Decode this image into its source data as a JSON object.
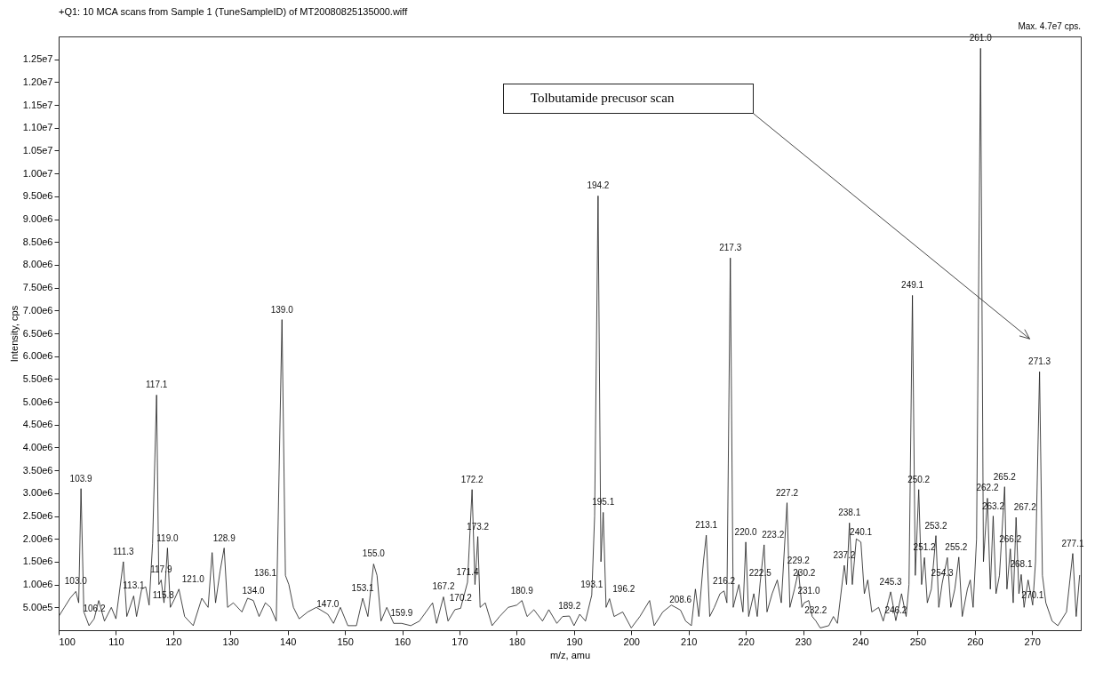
{
  "chart_data": {
    "type": "line",
    "title": "+Q1: 10 MCA scans from Sample 1 (TuneSampleID) of MT20080825135000.wiff",
    "xlabel": "m/z, amu",
    "ylabel": "Intensity, cps",
    "xlim": [
      100,
      278.5
    ],
    "xticks": [
      100,
      110,
      120,
      130,
      140,
      150,
      160,
      170,
      180,
      190,
      200,
      210,
      220,
      230,
      240,
      250,
      260,
      270
    ],
    "ylim": [
      0,
      13000000
    ],
    "yticks": [
      {
        "value": 500000,
        "label": "5.00e5"
      },
      {
        "value": 1000000,
        "label": "1.00e6"
      },
      {
        "value": 1500000,
        "label": "1.50e6"
      },
      {
        "value": 2000000,
        "label": "2.00e6"
      },
      {
        "value": 2500000,
        "label": "2.50e6"
      },
      {
        "value": 3000000,
        "label": "3.00e6"
      },
      {
        "value": 3500000,
        "label": "3.50e6"
      },
      {
        "value": 4000000,
        "label": "4.00e6"
      },
      {
        "value": 4500000,
        "label": "4.50e6"
      },
      {
        "value": 5000000,
        "label": "5.00e6"
      },
      {
        "value": 5500000,
        "label": "5.50e6"
      },
      {
        "value": 6000000,
        "label": "6.00e6"
      },
      {
        "value": 6500000,
        "label": "6.50e6"
      },
      {
        "value": 7000000,
        "label": "7.00e6"
      },
      {
        "value": 7500000,
        "label": "7.50e6"
      },
      {
        "value": 8000000,
        "label": "8.00e6"
      },
      {
        "value": 8500000,
        "label": "8.50e6"
      },
      {
        "value": 9000000,
        "label": "9.00e6"
      },
      {
        "value": 9500000,
        "label": "9.50e6"
      },
      {
        "value": 10000000,
        "label": "1.00e7"
      },
      {
        "value": 10500000,
        "label": "1.05e7"
      },
      {
        "value": 11000000,
        "label": "1.10e7"
      },
      {
        "value": 11500000,
        "label": "1.15e7"
      },
      {
        "value": 12000000,
        "label": "1.20e7"
      },
      {
        "value": 12500000,
        "label": "1.25e7"
      }
    ],
    "marker": "none",
    "line_style": "solid",
    "x": [
      100,
      101,
      102,
      103.0,
      103.5,
      103.9,
      104.4,
      105.3,
      106.2,
      107,
      108,
      109.2,
      110,
      111.3,
      111.9,
      113.1,
      113.6,
      114.5,
      115.2,
      115.8,
      116.4,
      117.1,
      117.5,
      117.9,
      118.4,
      119.0,
      119.5,
      120.3,
      121.0,
      122,
      123.5,
      125,
      126.1,
      126.8,
      127.4,
      128.2,
      128.9,
      129.5,
      130.5,
      132,
      133,
      134.0,
      135,
      136.1,
      137,
      138,
      139.0,
      139.6,
      140.2,
      141,
      142,
      143.5,
      145,
      147.0,
      148,
      149.2,
      150.5,
      152,
      153.1,
      154,
      155.0,
      155.6,
      156.3,
      157.3,
      158.5,
      159.9,
      161.5,
      163,
      165.3,
      166,
      167.2,
      168,
      169.2,
      170.2,
      171.4,
      172.2,
      172.7,
      173.2,
      173.6,
      174.5,
      175.7,
      177,
      178.5,
      180.0,
      180.9,
      181.8,
      183,
      184.5,
      185.6,
      187,
      188,
      189.2,
      190,
      191,
      192,
      193.1,
      193.6,
      194.2,
      194.7,
      195.1,
      195.6,
      196.2,
      197,
      198.5,
      200,
      201.5,
      203.2,
      204,
      205.5,
      207,
      208.6,
      209.5,
      210.5,
      211.2,
      211.8,
      212.6,
      213.1,
      213.7,
      214.5,
      215.5,
      216.2,
      216.7,
      217.3,
      217.8,
      218.8,
      219.5,
      220.0,
      220.5,
      221.4,
      222.0,
      222.5,
      223.2,
      223.7,
      224.6,
      225.5,
      226.2,
      227.2,
      227.7,
      228.5,
      229.2,
      229.8,
      230.2,
      231.0,
      231.6,
      232.2,
      233,
      234.5,
      235.3,
      236,
      237.2,
      237.6,
      238.1,
      238.6,
      239.3,
      240.1,
      240.7,
      241.3,
      242,
      243.2,
      244,
      245.3,
      246.2,
      247.2,
      248,
      248.5,
      249.1,
      249.6,
      250.2,
      250.7,
      251.2,
      251.7,
      252.4,
      253.2,
      253.7,
      254.3,
      255.2,
      255.8,
      256.5,
      257.2,
      257.8,
      258.7,
      259.2,
      259.7,
      260.3,
      261.0,
      261.5,
      262.2,
      262.7,
      263.2,
      263.7,
      264.3,
      265.2,
      265.6,
      266.2,
      266.7,
      267.2,
      267.7,
      268.1,
      268.6,
      269.3,
      270.1,
      270.6,
      271.3,
      271.8,
      272.4,
      273.5,
      274.5,
      276,
      277.1,
      277.7,
      278.3
    ],
    "series": [
      {
        "color": "#1a1a1a",
        "values": [
          300000,
          500000,
          700000,
          850000,
          600000,
          3100000,
          400000,
          100000,
          250000,
          650000,
          200000,
          500000,
          250000,
          1500000,
          300000,
          750000,
          300000,
          900000,
          950000,
          550000,
          1900000,
          5150000,
          1000000,
          1100000,
          600000,
          1800000,
          500000,
          700000,
          900000,
          300000,
          100000,
          700000,
          500000,
          1700000,
          600000,
          1300000,
          1800000,
          500000,
          600000,
          400000,
          700000,
          650000,
          300000,
          600000,
          500000,
          200000,
          6800000,
          1200000,
          1000000,
          500000,
          250000,
          400000,
          500000,
          350000,
          150000,
          500000,
          100000,
          100000,
          700000,
          300000,
          1450000,
          1200000,
          200000,
          500000,
          150000,
          150000,
          100000,
          200000,
          600000,
          150000,
          730000,
          200000,
          450000,
          480000,
          1050000,
          3080000,
          1000000,
          2050000,
          500000,
          600000,
          100000,
          300000,
          500000,
          550000,
          650000,
          300000,
          450000,
          200000,
          450000,
          150000,
          300000,
          310000,
          100000,
          350000,
          200000,
          770000,
          2500000,
          9510000,
          1500000,
          2580000,
          500000,
          690000,
          300000,
          400000,
          50000,
          300000,
          650000,
          100000,
          400000,
          550000,
          440000,
          200000,
          100000,
          900000,
          300000,
          1500000,
          2080000,
          300000,
          500000,
          800000,
          860000,
          600000,
          8150000,
          500000,
          1000000,
          400000,
          1930000,
          300000,
          800000,
          300000,
          1030000,
          1870000,
          400000,
          800000,
          1100000,
          600000,
          2790000,
          500000,
          900000,
          1300000,
          500000,
          600000,
          650000,
          300000,
          210000,
          50000,
          100000,
          300000,
          150000,
          1420000,
          1000000,
          2350000,
          1000000,
          2000000,
          1930000,
          800000,
          1100000,
          400000,
          500000,
          200000,
          840000,
          210000,
          800000,
          300000,
          1000000,
          7330000,
          1200000,
          3080000,
          1000000,
          1590000,
          600000,
          900000,
          2070000,
          500000,
          1030000,
          1590000,
          500000,
          900000,
          1600000,
          300000,
          900000,
          1100000,
          500000,
          2000000,
          12740000,
          1500000,
          2890000,
          900000,
          2500000,
          800000,
          1200000,
          3140000,
          900000,
          1780000,
          600000,
          2470000,
          800000,
          1220000,
          500000,
          1100000,
          550000,
          1500000,
          5660000,
          1200000,
          600000,
          200000,
          100000,
          400000,
          1680000,
          300000,
          1200000
        ]
      }
    ],
    "annotations": [
      "Max. 4.7e7 cps.",
      {
        "text": "103.0",
        "x": 103.0,
        "y": 850000
      },
      {
        "text": "103.9",
        "x": 103.9,
        "y": 3100000
      },
      {
        "text": "106.2",
        "x": 106.2,
        "y": 250000
      },
      {
        "text": "111.3",
        "x": 111.3,
        "y": 1500000
      },
      {
        "text": "113.1",
        "x": 113.1,
        "y": 750000
      },
      {
        "text": "115.8",
        "x": 115.8,
        "y": 550000
      },
      {
        "text": "117.1",
        "x": 117.1,
        "y": 5150000
      },
      {
        "text": "117.9",
        "x": 117.9,
        "y": 1100000
      },
      {
        "text": "119.0",
        "x": 119.0,
        "y": 1800000
      },
      {
        "text": "121.0",
        "x": 121.0,
        "y": 900000
      },
      {
        "text": "128.9",
        "x": 128.9,
        "y": 1800000
      },
      {
        "text": "134.0",
        "x": 134.0,
        "y": 650000
      },
      {
        "text": "136.1",
        "x": 136.1,
        "y": 600000
      },
      {
        "text": "139.0",
        "x": 139.0,
        "y": 6800000
      },
      {
        "text": "147.0",
        "x": 147.0,
        "y": 350000
      },
      {
        "text": "153.1",
        "x": 153.1,
        "y": 700000
      },
      {
        "text": "155.0",
        "x": 155.0,
        "y": 1450000
      },
      {
        "text": "159.9",
        "x": 159.9,
        "y": 150000
      },
      {
        "text": "167.2",
        "x": 167.2,
        "y": 730000
      },
      {
        "text": "170.2",
        "x": 170.2,
        "y": 480000
      },
      {
        "text": "171.4",
        "x": 171.4,
        "y": 1050000
      },
      {
        "text": "172.2",
        "x": 172.2,
        "y": 3080000
      },
      {
        "text": "173.2",
        "x": 173.2,
        "y": 2050000
      },
      {
        "text": "180.9",
        "x": 180.9,
        "y": 650000
      },
      {
        "text": "189.2",
        "x": 189.2,
        "y": 310000
      },
      {
        "text": "193.1",
        "x": 193.1,
        "y": 770000
      },
      {
        "text": "194.2",
        "x": 194.2,
        "y": 9510000
      },
      {
        "text": "195.1",
        "x": 195.1,
        "y": 2580000
      },
      {
        "text": "196.2",
        "x": 196.2,
        "y": 690000
      },
      {
        "text": "208.6",
        "x": 208.6,
        "y": 440000
      },
      {
        "text": "213.1",
        "x": 213.1,
        "y": 2080000
      },
      {
        "text": "216.2",
        "x": 216.2,
        "y": 860000
      },
      {
        "text": "217.3",
        "x": 217.3,
        "y": 8150000
      },
      {
        "text": "220.0",
        "x": 220.0,
        "y": 1930000
      },
      {
        "text": "222.5",
        "x": 222.5,
        "y": 1030000
      },
      {
        "text": "223.2",
        "x": 223.2,
        "y": 1870000
      },
      {
        "text": "227.2",
        "x": 227.2,
        "y": 2790000
      },
      {
        "text": "229.2",
        "x": 229.2,
        "y": 1300000
      },
      {
        "text": "230.2",
        "x": 230.2,
        "y": 600000
      },
      {
        "text": "231.0",
        "x": 231.0,
        "y": 650000
      },
      {
        "text": "232.2",
        "x": 232.2,
        "y": 210000
      },
      {
        "text": "237.2",
        "x": 237.2,
        "y": 1420000
      },
      {
        "text": "238.1",
        "x": 238.1,
        "y": 2350000
      },
      {
        "text": "240.1",
        "x": 240.1,
        "y": 1930000
      },
      {
        "text": "245.3",
        "x": 245.3,
        "y": 840000
      },
      {
        "text": "246.2",
        "x": 246.2,
        "y": 210000
      },
      {
        "text": "249.1",
        "x": 249.1,
        "y": 7330000
      },
      {
        "text": "250.2",
        "x": 250.2,
        "y": 3080000
      },
      {
        "text": "251.2",
        "x": 251.2,
        "y": 1590000
      },
      {
        "text": "253.2",
        "x": 253.2,
        "y": 2070000
      },
      {
        "text": "254.3",
        "x": 254.3,
        "y": 1030000
      },
      {
        "text": "255.2",
        "x": 255.2,
        "y": 1590000
      },
      {
        "text": "261.0",
        "x": 261.0,
        "y": 12740000
      },
      {
        "text": "262.2",
        "x": 262.2,
        "y": 2890000
      },
      {
        "text": "263.2",
        "x": 263.2,
        "y": 2500000
      },
      {
        "text": "265.2",
        "x": 265.2,
        "y": 3140000
      },
      {
        "text": "266.2",
        "x": 266.2,
        "y": 1780000
      },
      {
        "text": "267.2",
        "x": 267.2,
        "y": 2470000
      },
      {
        "text": "268.1",
        "x": 268.1,
        "y": 1220000
      },
      {
        "text": "270.1",
        "x": 270.1,
        "y": 550000
      },
      {
        "text": "271.3",
        "x": 271.3,
        "y": 5660000
      },
      {
        "text": "277.1",
        "x": 277.1,
        "y": 1680000
      },
      "Tolbutamide precusor scan"
    ]
  }
}
